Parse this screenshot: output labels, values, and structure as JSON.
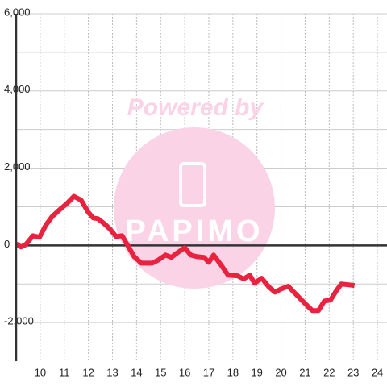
{
  "chart_data": {
    "type": "line",
    "watermark": "Powered by",
    "watermark_logo": "PAPIMO",
    "x": [
      9.0,
      9.2,
      9.4,
      9.7,
      9.97,
      10.23,
      10.5,
      10.8,
      11.1,
      11.4,
      11.7,
      11.98,
      12.2,
      12.4,
      12.7,
      12.9,
      13.15,
      13.4,
      13.65,
      13.9,
      14.2,
      14.65,
      14.9,
      15.2,
      15.45,
      15.7,
      16.0,
      16.25,
      16.5,
      16.8,
      17.0,
      17.2,
      17.5,
      17.8,
      18.2,
      18.45,
      18.7,
      18.9,
      19.2,
      19.5,
      19.75,
      20.0,
      20.3,
      20.5,
      20.8,
      21.05,
      21.3,
      21.55,
      21.8,
      22.05,
      22.3,
      22.5,
      22.8,
      23.05
    ],
    "series": [
      {
        "color": "#e8223f",
        "values": [
          40,
          -40,
          20,
          250,
          210,
          520,
          750,
          920,
          1080,
          1270,
          1170,
          870,
          710,
          690,
          540,
          420,
          230,
          250,
          -20,
          -290,
          -460,
          -460,
          -380,
          -250,
          -310,
          -190,
          -60,
          -250,
          -290,
          -310,
          -440,
          -250,
          -500,
          -770,
          -790,
          -870,
          -770,
          -980,
          -850,
          -1080,
          -1210,
          -1130,
          -1060,
          -1190,
          -1380,
          -1540,
          -1690,
          -1690,
          -1440,
          -1420,
          -1170,
          -1000,
          -1020,
          -1040
        ]
      }
    ],
    "xlim": [
      9,
      24.4
    ],
    "xticks": [
      10,
      11,
      12,
      13,
      14,
      15,
      16,
      17,
      18,
      19,
      20,
      21,
      22,
      23,
      24
    ],
    "ylim": [
      -3000,
      6000
    ],
    "yticks": [
      {
        "value": -2000,
        "label": "-2,000"
      },
      0,
      {
        "value": 2000,
        "label": "2,000"
      },
      {
        "value": 4000,
        "label": "4,000"
      },
      {
        "value": 6000,
        "label": "6,000"
      }
    ],
    "y_minor_gridlines": [
      -1000,
      1000,
      3000,
      5000
    ],
    "grid": true
  }
}
